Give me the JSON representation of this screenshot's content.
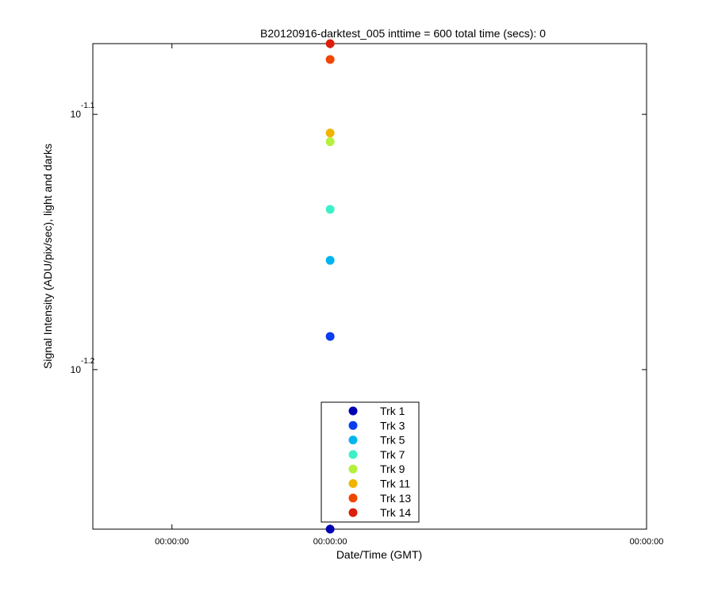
{
  "chart_data": {
    "type": "scatter",
    "title": "B20120916-darktest_005 inttime = 600 total time (secs): 0",
    "xlabel": "Date/Time (GMT)",
    "ylabel": "Signal Intensity (ADU/pix/sec), light and darks",
    "y_scale": "log",
    "ylim_log10": [
      -1.2625,
      -1.0723
    ],
    "y_ticks": [
      {
        "base": "10",
        "exp": "-1.1",
        "log10": -1.1
      },
      {
        "base": "10",
        "exp": "-1.2",
        "log10": -1.2
      }
    ],
    "x_ticks": [
      {
        "label": "00:00:00",
        "t": -0.25
      },
      {
        "label": "00:00:00",
        "t": 0.0
      },
      {
        "label": "00:00:00",
        "t": 0.5
      }
    ],
    "xlim": [
      -0.375,
      0.5
    ],
    "grid": false,
    "legend_position": "bottom-center",
    "series": [
      {
        "name": "Trk 1",
        "color": "#0000b4",
        "x": [
          0.0
        ],
        "y_log10": [
          -1.2625
        ]
      },
      {
        "name": "Trk 3",
        "color": "#0a3cf0",
        "x": [
          0.0
        ],
        "y_log10": [
          -1.187
        ]
      },
      {
        "name": "Trk 5",
        "color": "#00b4f0",
        "x": [
          0.0
        ],
        "y_log10": [
          -1.1572
        ]
      },
      {
        "name": "Trk 7",
        "color": "#3cf0c8",
        "x": [
          0.0
        ],
        "y_log10": [
          -1.1372
        ]
      },
      {
        "name": "Trk 9",
        "color": "#b4f03c",
        "x": [
          0.0
        ],
        "y_log10": [
          -1.1107
        ]
      },
      {
        "name": "Trk 11",
        "color": "#f0b400",
        "x": [
          0.0
        ],
        "y_log10": [
          -1.1073
        ]
      },
      {
        "name": "Trk 13",
        "color": "#f04600",
        "x": [
          0.0
        ],
        "y_log10": [
          -1.0785
        ]
      },
      {
        "name": "Trk 14",
        "color": "#dc1e0a",
        "x": [
          0.0
        ],
        "y_log10": [
          -1.0723
        ]
      }
    ]
  }
}
